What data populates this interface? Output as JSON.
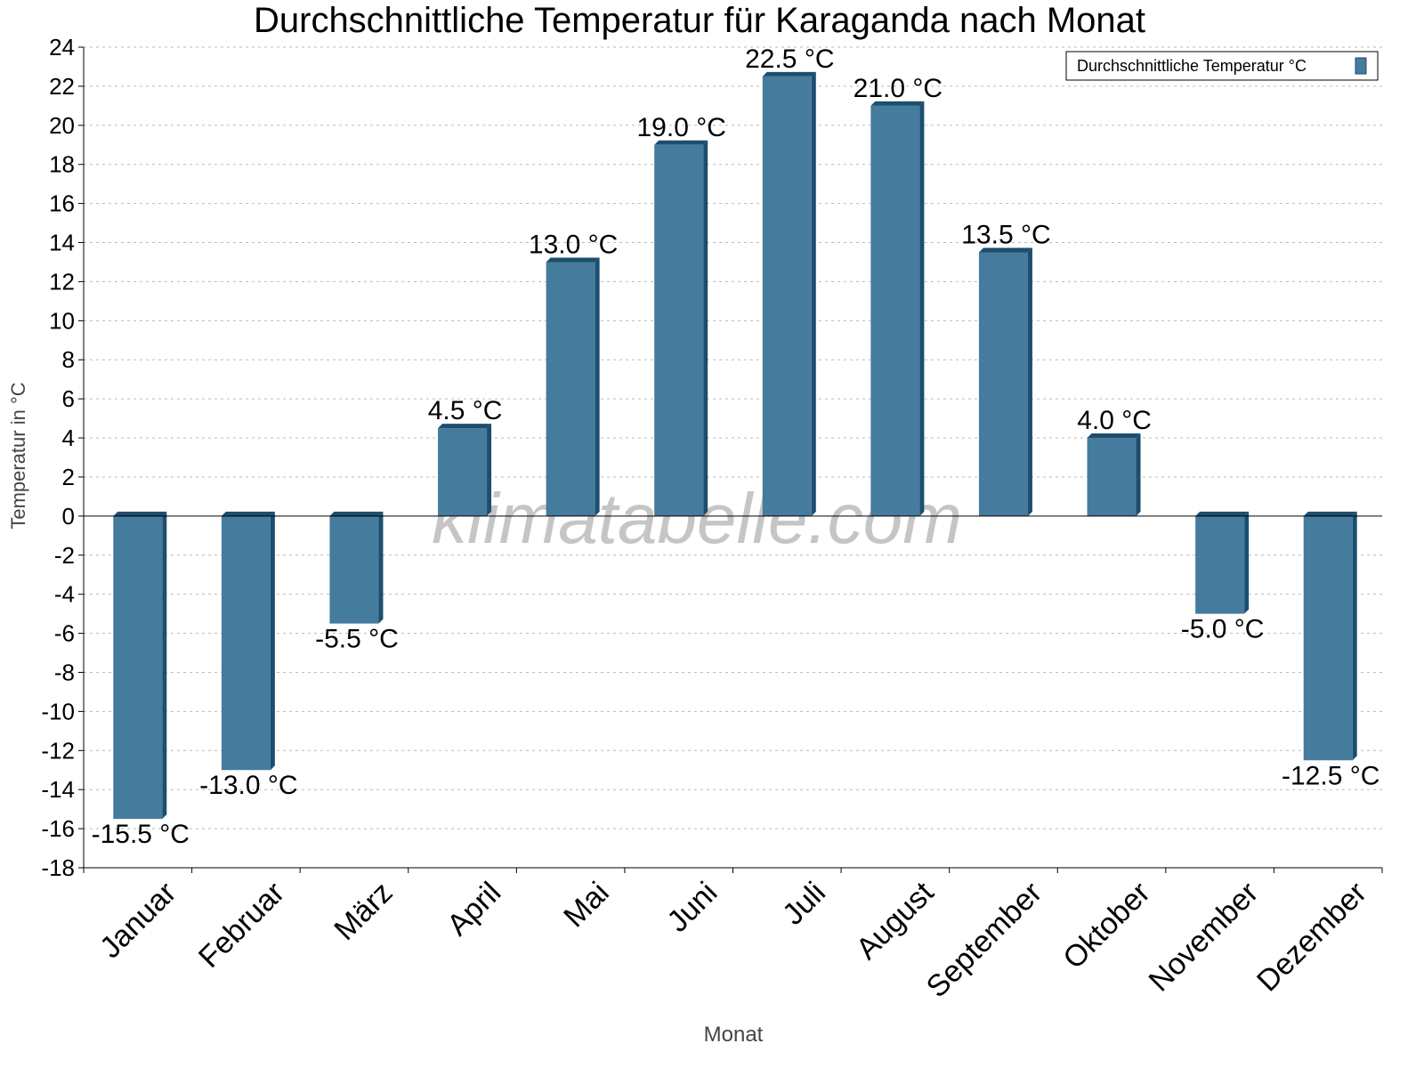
{
  "chart_data": {
    "type": "bar",
    "title": "Durchschnittliche Temperatur für Karaganda nach Monat",
    "xlabel": "Monat",
    "ylabel": "Temperatur in °C",
    "categories": [
      "Januar",
      "Februar",
      "März",
      "April",
      "Mai",
      "Juni",
      "Juli",
      "August",
      "September",
      "Oktober",
      "November",
      "Dezember"
    ],
    "series": [
      {
        "name": "Durchschnittliche Temperatur °C",
        "values": [
          -15.5,
          -13.0,
          -5.5,
          4.5,
          13.0,
          19.0,
          22.5,
          21.0,
          13.5,
          4.0,
          -5.0,
          -12.5
        ],
        "data_labels": [
          "-15.5 °C",
          "-13.0 °C",
          "-5.5 °C",
          "4.5 °C",
          "13.0 °C",
          "19.0 °C",
          "22.5 °C",
          "21.0 °C",
          "13.5 °C",
          "4.0 °C",
          "-5.0 °C",
          "-12.5 °C"
        ]
      }
    ],
    "ylim": [
      -18,
      24
    ],
    "yticks": [
      24,
      22,
      20,
      18,
      16,
      14,
      12,
      10,
      8,
      6,
      4,
      2,
      0,
      -2,
      -4,
      -6,
      -8,
      -10,
      -12,
      -14,
      -16,
      -18
    ],
    "grid": true,
    "legend": "top-right",
    "colors": {
      "bar": "#457b9d",
      "bar_side": "#1d4e6e"
    },
    "watermark": "klimatabelle.com"
  }
}
